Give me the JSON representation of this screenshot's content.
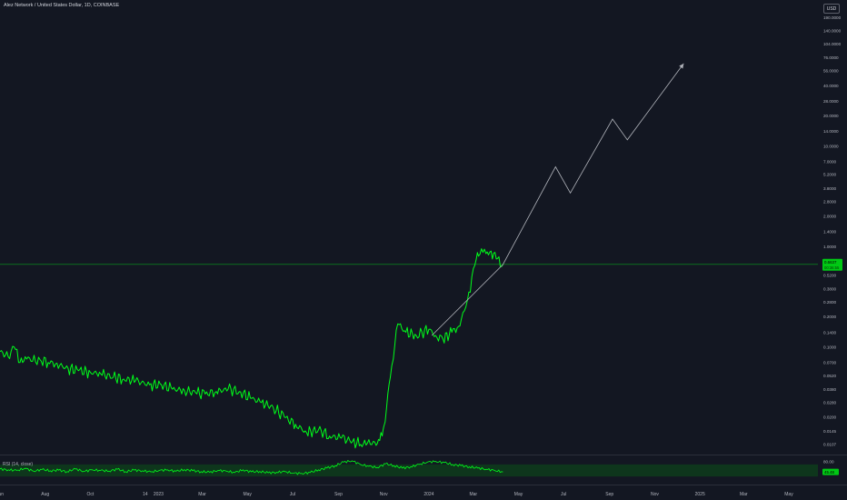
{
  "header": {
    "title": "Alez Network / United States Dollar, 1D, COINBASE",
    "currency": "USD"
  },
  "colors": {
    "background": "#131722",
    "price_line": "#00ff1a",
    "projection": "#b0b3ba",
    "axis_text": "#b2b5be",
    "current_price_bg": "#00c814",
    "rsi_band": "#0e3a1c"
  },
  "chart_data": [
    {
      "type": "line",
      "title": "Alez Network / United States Dollar, 1D, COINBASE",
      "y_scale": "log",
      "ylim": [
        0.0085,
        230
      ],
      "y_ticks": [
        "0.0107",
        "0.0145",
        "0.0200",
        "0.0280",
        "0.0380",
        "0.0520",
        "0.0700",
        "0.1000",
        "0.1400",
        "0.2000",
        "0.2800",
        "0.3800",
        "0.5200",
        "1.0000",
        "1.4000",
        "2.0000",
        "2.8000",
        "3.8000",
        "5.2000",
        "7.0000",
        "10.0000",
        "14.0000",
        "20.0000",
        "28.0000",
        "40.0000",
        "56.0000",
        "76.0000",
        "104.0000",
        "140.0000",
        "190.0000"
      ],
      "x_ticks": [
        "Jun",
        "Aug",
        "Oct",
        "14",
        "2023",
        "Mar",
        "May",
        "Jul",
        "Sep",
        "Nov",
        "2024",
        "Mar",
        "May",
        "Jul",
        "Sep",
        "Nov",
        "2025",
        "Mar",
        "May"
      ],
      "current_price_label": "0.6637",
      "current_price_sublabel": "00:36:55",
      "series": [
        {
          "dates": [
            "2022-06-01",
            "2022-06-12",
            "2022-06-20",
            "2022-06-28",
            "2022-07-05",
            "2022-07-15",
            "2022-07-25",
            "2022-08-05",
            "2022-08-15",
            "2022-09-01",
            "2022-09-15",
            "2022-10-01",
            "2022-10-15",
            "2022-11-01",
            "2022-11-15",
            "2022-12-01",
            "2022-12-20",
            "2023-01-05",
            "2023-01-20",
            "2023-02-05",
            "2023-02-20",
            "2023-03-05",
            "2023-03-20",
            "2023-04-05",
            "2023-04-20",
            "2023-05-05",
            "2023-05-20",
            "2023-06-05",
            "2023-06-20",
            "2023-07-05",
            "2023-07-20",
            "2023-08-05",
            "2023-08-20",
            "2023-09-05",
            "2023-09-20",
            "2023-10-01",
            "2023-10-10",
            "2023-10-20",
            "2023-10-25",
            "2023-10-30",
            "2023-11-01",
            "2023-11-05",
            "2023-11-10",
            "2023-11-20",
            "2023-12-01",
            "2023-12-15",
            "2024-01-01",
            "2024-01-10",
            "2024-01-20",
            "2024-02-01",
            "2024-02-10",
            "2024-02-20",
            "2024-02-26",
            "2024-03-01",
            "2024-03-05",
            "2024-03-08",
            "2024-03-12",
            "2024-03-18",
            "2024-03-25",
            "2024-04-01",
            "2024-04-10"
          ],
          "values": [
            0.09,
            0.08,
            0.1,
            0.07,
            0.08,
            0.072,
            0.075,
            0.07,
            0.068,
            0.061,
            0.058,
            0.056,
            0.054,
            0.05,
            0.048,
            0.046,
            0.042,
            0.042,
            0.038,
            0.037,
            0.035,
            0.034,
            0.036,
            0.038,
            0.036,
            0.031,
            0.028,
            0.025,
            0.02,
            0.017,
            0.014,
            0.015,
            0.013,
            0.0124,
            0.0115,
            0.0107,
            0.011,
            0.0113,
            0.012,
            0.013,
            0.016,
            0.025,
            0.05,
            0.17,
            0.14,
            0.13,
            0.15,
            0.13,
            0.12,
            0.14,
            0.16,
            0.25,
            0.35,
            0.6,
            0.75,
            0.8,
            0.95,
            0.85,
            0.9,
            0.75,
            0.66
          ]
        }
      ],
      "projection": {
        "dates": [
          "2024-01-05",
          "2024-04-10",
          "2024-06-20",
          "2024-07-10",
          "2024-09-05",
          "2024-09-25",
          "2024-12-10"
        ],
        "values": [
          0.13,
          0.66,
          6.2,
          3.4,
          18.5,
          11.5,
          66
        ]
      },
      "rsi": {
        "label": "RSI (14, close)",
        "y_ticks": [
          "80.00"
        ],
        "current_label": "45.48",
        "band": [
          30,
          70
        ],
        "values": [
          55,
          52,
          50,
          57,
          48,
          53,
          49,
          51,
          46,
          55,
          47,
          52,
          50,
          48,
          54,
          46,
          51,
          49,
          45,
          50,
          52,
          47,
          53,
          49,
          46,
          44,
          50,
          48,
          43,
          52,
          45,
          47,
          42,
          44,
          46,
          41,
          40,
          43,
          52,
          58,
          66,
          78,
          82,
          70,
          64,
          60,
          72,
          66,
          58,
          62,
          70,
          78,
          80,
          76,
          70,
          66,
          62,
          58,
          54,
          50,
          45
        ]
      }
    }
  ]
}
